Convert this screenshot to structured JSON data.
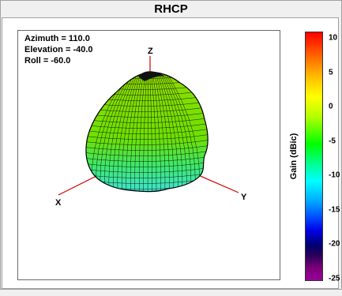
{
  "window": {
    "title": "RHCP"
  },
  "orientation": {
    "azimuth": "Azimuth = 110.0",
    "elevation": "Elevation = -40.0",
    "roll": "Roll = -60.0"
  },
  "axes": {
    "x": "X",
    "y": "Y",
    "z": "Z"
  },
  "colorbar": {
    "title": "Gain (dBic)",
    "ticks": [
      "10",
      "5",
      "0",
      "-5",
      "-10",
      "-15",
      "-20",
      "-25"
    ]
  },
  "colors": {
    "axis_line": "#cc0000",
    "pattern_top": "#7ad400",
    "pattern_bottom": "#3fe3d0",
    "mesh": "#000000"
  }
}
